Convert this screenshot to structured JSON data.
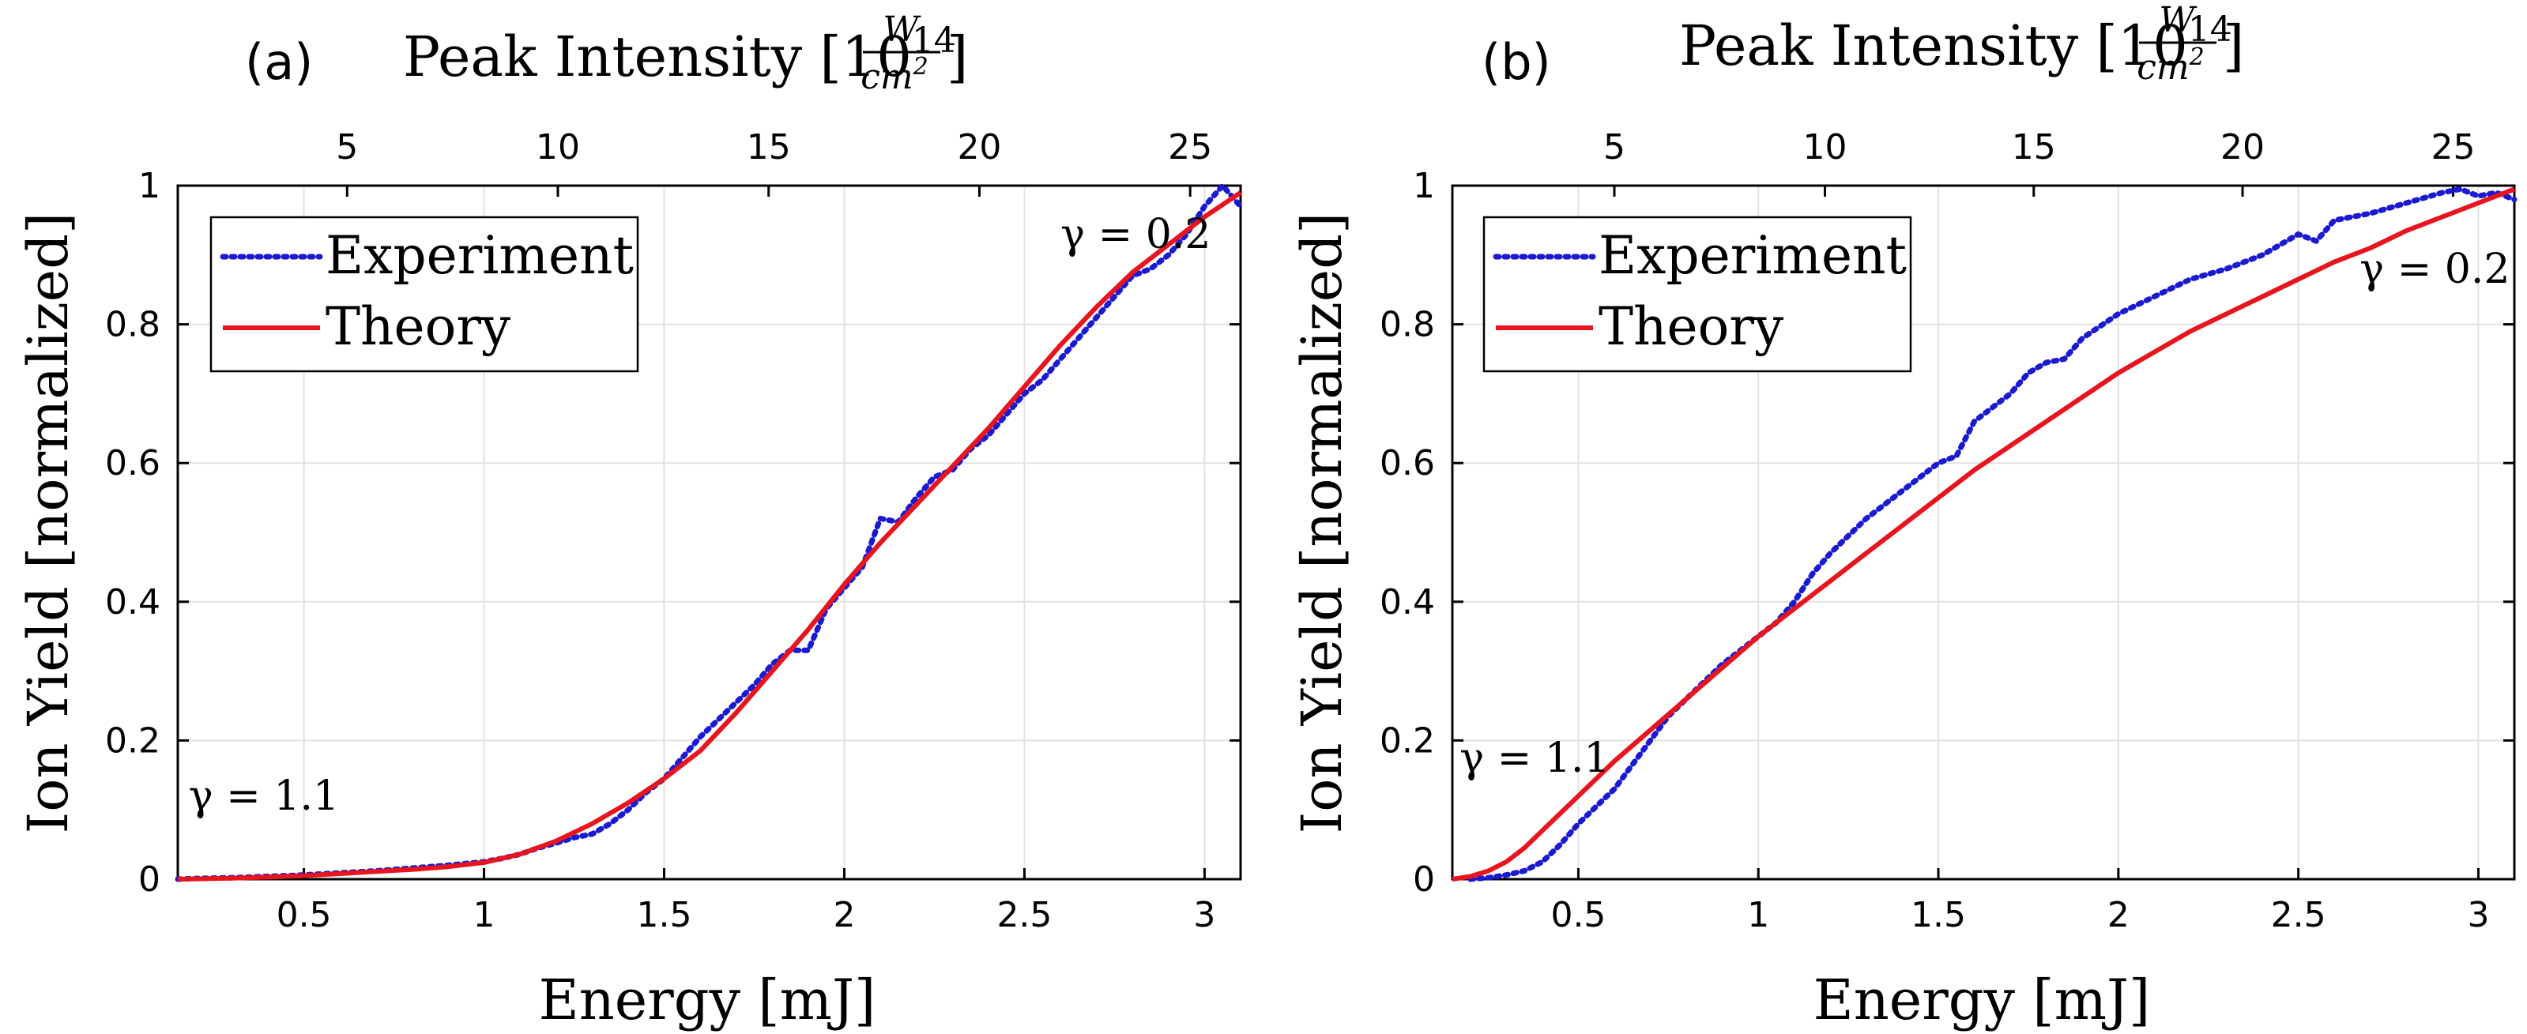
{
  "colors": {
    "experiment": "#1a1ad2",
    "theory": "#e8141e",
    "grid": "#e2e2e2",
    "axis": "#000000"
  },
  "chart_data": [
    {
      "type": "line",
      "panel_label": "(a)",
      "title_prefix": "Peak Intensity [10",
      "title_exponent": "14",
      "title_frac_num": "W",
      "title_frac_den": "cm",
      "title_frac_den_exp": "2",
      "title_suffix": "]",
      "xlabel": "Energy [mJ]",
      "ylabel": "Ion Yield [normalized]",
      "xlim": [
        0.15,
        3.1
      ],
      "ylim": [
        0,
        1
      ],
      "grid": true,
      "legend_position": "top-left",
      "x_ticks": [
        0.5,
        1,
        1.5,
        2,
        2.5,
        3
      ],
      "x_tick_labels": [
        "0.5",
        "1",
        "1.5",
        "2",
        "2.5",
        "3"
      ],
      "y_ticks": [
        0,
        0.2,
        0.4,
        0.6,
        0.8,
        1
      ],
      "y_tick_labels": [
        "0",
        "0.2",
        "0.4",
        "0.6",
        "0.8",
        "1"
      ],
      "top_axis": {
        "ticks": [
          5,
          10,
          15,
          20,
          25
        ],
        "tick_labels": [
          "5",
          "10",
          "15",
          "20",
          "25"
        ],
        "at_energy": [
          0.62,
          1.205,
          1.79,
          2.375,
          2.96
        ]
      },
      "annotations": [
        {
          "text": "γ = 1.1",
          "x": 0.18,
          "y": 0.1
        },
        {
          "text": "γ = 0.2",
          "x": 2.6,
          "y": 0.91
        }
      ],
      "series": [
        {
          "name": "Experiment",
          "style": "dotted",
          "x": [
            0.15,
            0.2,
            0.3,
            0.4,
            0.5,
            0.6,
            0.7,
            0.8,
            0.9,
            1.0,
            1.05,
            1.1,
            1.15,
            1.2,
            1.25,
            1.3,
            1.35,
            1.4,
            1.45,
            1.5,
            1.55,
            1.6,
            1.65,
            1.7,
            1.75,
            1.8,
            1.85,
            1.9,
            1.95,
            2.0,
            2.05,
            2.1,
            2.15,
            2.2,
            2.25,
            2.3,
            2.35,
            2.4,
            2.45,
            2.5,
            2.55,
            2.6,
            2.65,
            2.7,
            2.75,
            2.8,
            2.85,
            2.9,
            2.95,
            3.0,
            3.05,
            3.1
          ],
          "values": [
            0,
            0.001,
            0.002,
            0.004,
            0.006,
            0.009,
            0.012,
            0.016,
            0.02,
            0.025,
            0.03,
            0.036,
            0.045,
            0.052,
            0.06,
            0.065,
            0.08,
            0.1,
            0.125,
            0.145,
            0.175,
            0.205,
            0.23,
            0.255,
            0.28,
            0.31,
            0.33,
            0.33,
            0.39,
            0.42,
            0.45,
            0.52,
            0.515,
            0.55,
            0.58,
            0.59,
            0.62,
            0.64,
            0.67,
            0.7,
            0.72,
            0.75,
            0.78,
            0.81,
            0.84,
            0.87,
            0.88,
            0.9,
            0.93,
            0.97,
            1.0,
            0.97
          ]
        },
        {
          "name": "Theory",
          "style": "solid",
          "x": [
            0.15,
            0.2,
            0.3,
            0.4,
            0.5,
            0.6,
            0.7,
            0.8,
            0.9,
            1.0,
            1.1,
            1.2,
            1.3,
            1.4,
            1.5,
            1.6,
            1.7,
            1.8,
            1.9,
            2.0,
            2.1,
            2.2,
            2.3,
            2.4,
            2.5,
            2.6,
            2.7,
            2.8,
            2.9,
            3.0,
            3.1
          ],
          "values": [
            0,
            0.0005,
            0.0015,
            0.003,
            0.005,
            0.008,
            0.011,
            0.014,
            0.018,
            0.024,
            0.036,
            0.055,
            0.08,
            0.11,
            0.145,
            0.185,
            0.24,
            0.3,
            0.36,
            0.425,
            0.485,
            0.54,
            0.595,
            0.65,
            0.71,
            0.77,
            0.825,
            0.875,
            0.915,
            0.955,
            0.99
          ]
        }
      ]
    },
    {
      "type": "line",
      "panel_label": "(b)",
      "title_prefix": "Peak Intensity [10",
      "title_exponent": "14",
      "title_frac_num": "W",
      "title_frac_den": "cm",
      "title_frac_den_exp": "2",
      "title_suffix": "]",
      "xlabel": "Energy [mJ]",
      "ylabel": "Ion Yield [normalized]",
      "xlim": [
        0.15,
        3.1
      ],
      "ylim": [
        0,
        1
      ],
      "grid": true,
      "legend_position": "top-left",
      "x_ticks": [
        0.5,
        1,
        1.5,
        2,
        2.5,
        3
      ],
      "x_tick_labels": [
        "0.5",
        "1",
        "1.5",
        "2",
        "2.5",
        "3"
      ],
      "y_ticks": [
        0,
        0.2,
        0.4,
        0.6,
        0.8,
        1
      ],
      "y_tick_labels": [
        "0",
        "0.2",
        "0.4",
        "0.6",
        "0.8",
        "1"
      ],
      "top_axis": {
        "ticks": [
          5,
          10,
          15,
          20,
          25
        ],
        "tick_labels": [
          "5",
          "10",
          "15",
          "20",
          "25"
        ],
        "at_energy": [
          0.6,
          1.185,
          1.765,
          2.345,
          2.93
        ]
      },
      "annotations": [
        {
          "text": "γ = 1.1",
          "x": 0.17,
          "y": 0.155
        },
        {
          "text": "γ = 0.2",
          "x": 2.67,
          "y": 0.86
        }
      ],
      "series": [
        {
          "name": "Experiment",
          "style": "dotted",
          "x": [
            0.2,
            0.25,
            0.3,
            0.35,
            0.4,
            0.45,
            0.5,
            0.55,
            0.6,
            0.65,
            0.7,
            0.75,
            0.8,
            0.85,
            0.9,
            0.95,
            1.0,
            1.05,
            1.1,
            1.15,
            1.2,
            1.3,
            1.4,
            1.5,
            1.55,
            1.6,
            1.7,
            1.75,
            1.8,
            1.85,
            1.9,
            2.0,
            2.1,
            2.2,
            2.3,
            2.4,
            2.5,
            2.55,
            2.6,
            2.7,
            2.8,
            2.9,
            2.95,
            3.0,
            3.05,
            3.1
          ],
          "values": [
            0,
            0.002,
            0.006,
            0.012,
            0.025,
            0.05,
            0.08,
            0.105,
            0.13,
            0.165,
            0.2,
            0.235,
            0.26,
            0.285,
            0.31,
            0.33,
            0.35,
            0.37,
            0.4,
            0.44,
            0.47,
            0.52,
            0.56,
            0.6,
            0.61,
            0.66,
            0.7,
            0.73,
            0.745,
            0.75,
            0.78,
            0.815,
            0.84,
            0.865,
            0.88,
            0.9,
            0.93,
            0.92,
            0.95,
            0.96,
            0.975,
            0.99,
            0.995,
            0.985,
            0.99,
            0.98
          ]
        },
        {
          "name": "Theory",
          "style": "solid",
          "x": [
            0.15,
            0.2,
            0.25,
            0.3,
            0.35,
            0.4,
            0.45,
            0.5,
            0.55,
            0.6,
            0.7,
            0.8,
            0.9,
            1.0,
            1.1,
            1.2,
            1.3,
            1.4,
            1.5,
            1.6,
            1.7,
            1.8,
            1.9,
            2.0,
            2.1,
            2.2,
            2.3,
            2.4,
            2.5,
            2.6,
            2.7,
            2.8,
            2.9,
            3.0,
            3.1
          ],
          "values": [
            0,
            0.004,
            0.012,
            0.025,
            0.045,
            0.07,
            0.095,
            0.12,
            0.145,
            0.17,
            0.215,
            0.26,
            0.305,
            0.35,
            0.39,
            0.43,
            0.47,
            0.51,
            0.55,
            0.59,
            0.625,
            0.66,
            0.695,
            0.73,
            0.76,
            0.79,
            0.815,
            0.84,
            0.865,
            0.89,
            0.91,
            0.935,
            0.955,
            0.975,
            0.995
          ]
        }
      ]
    }
  ]
}
